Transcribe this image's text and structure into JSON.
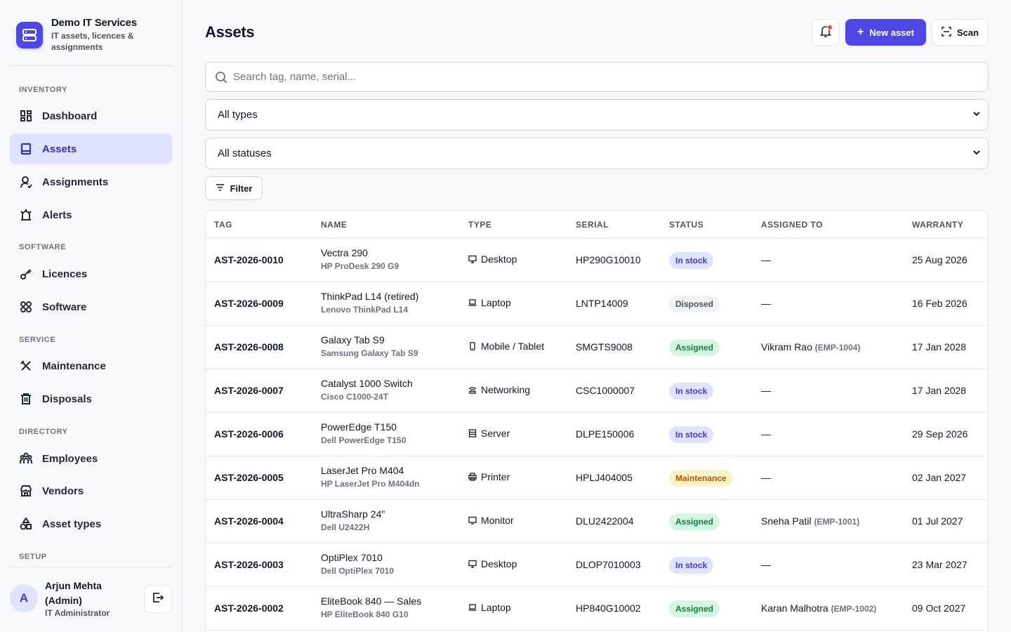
{
  "brand": {
    "title": "Demo IT Services",
    "subtitle": "IT assets, licences & assignments",
    "accent": "#4f46e5"
  },
  "nav": {
    "sections": [
      {
        "label": "INVENTORY"
      },
      {
        "label": "SOFTWARE"
      },
      {
        "label": "SERVICE"
      },
      {
        "label": "DIRECTORY"
      },
      {
        "label": "SETUP"
      }
    ],
    "items": [
      {
        "label": "Dashboard",
        "icon": "dashboard-icon"
      },
      {
        "label": "Assets",
        "icon": "assets-icon",
        "active": true
      },
      {
        "label": "Assignments",
        "icon": "assignments-icon"
      },
      {
        "label": "Alerts",
        "icon": "alerts-icon"
      },
      {
        "label": "Licences",
        "icon": "key-icon"
      },
      {
        "label": "Software",
        "icon": "software-icon"
      },
      {
        "label": "Maintenance",
        "icon": "tools-icon"
      },
      {
        "label": "Disposals",
        "icon": "trash-icon"
      },
      {
        "label": "Employees",
        "icon": "employees-icon"
      },
      {
        "label": "Vendors",
        "icon": "store-icon"
      },
      {
        "label": "Asset types",
        "icon": "shapes-icon"
      }
    ]
  },
  "user": {
    "initial": "A",
    "name": "Arjun Mehta (Admin)",
    "role": "IT Administrator"
  },
  "header": {
    "title": "Assets",
    "new_label": "New asset",
    "scan_label": "Scan"
  },
  "filters": {
    "search_placeholder": "Search tag, name, serial...",
    "type_value": "All types",
    "status_value": "All statuses",
    "filter_label": "Filter"
  },
  "table": {
    "columns": [
      "TAG",
      "NAME",
      "TYPE",
      "SERIAL",
      "STATUS",
      "ASSIGNED TO",
      "WARRANTY"
    ],
    "rows": [
      {
        "tag": "AST-2026-0010",
        "name": "Vectra 290",
        "model": "HP ProDesk 290 G9",
        "type": "Desktop",
        "type_icon": "desktop-icon",
        "serial": "HP290G10010",
        "status": "In stock",
        "status_kind": "stock",
        "assignee": "—",
        "emp": "",
        "warranty": "25 Aug 2026"
      },
      {
        "tag": "AST-2026-0009",
        "name": "ThinkPad L14 (retired)",
        "model": "Lenovo ThinkPad L14",
        "type": "Laptop",
        "type_icon": "laptop-icon",
        "serial": "LNTP14009",
        "status": "Disposed",
        "status_kind": "disp",
        "assignee": "—",
        "emp": "",
        "warranty": "16 Feb 2026"
      },
      {
        "tag": "AST-2026-0008",
        "name": "Galaxy Tab S9",
        "model": "Samsung Galaxy Tab S9",
        "type": "Mobile / Tablet",
        "type_icon": "mobile-icon",
        "serial": "SMGTS9008",
        "status": "Assigned",
        "status_kind": "asg",
        "assignee": "Vikram Rao",
        "emp": "(EMP-1004)",
        "warranty": "17 Jan 2028"
      },
      {
        "tag": "AST-2026-0007",
        "name": "Catalyst 1000 Switch",
        "model": "Cisco C1000-24T",
        "type": "Networking",
        "type_icon": "wifi-icon",
        "serial": "CSC1000007",
        "status": "In stock",
        "status_kind": "stock",
        "assignee": "—",
        "emp": "",
        "warranty": "17 Jan 2028"
      },
      {
        "tag": "AST-2026-0006",
        "name": "PowerEdge T150",
        "model": "Dell PowerEdge T150",
        "type": "Server",
        "type_icon": "server-icon",
        "serial": "DLPE150006",
        "status": "In stock",
        "status_kind": "stock",
        "assignee": "—",
        "emp": "",
        "warranty": "29 Sep 2026"
      },
      {
        "tag": "AST-2026-0005",
        "name": "LaserJet Pro M404",
        "model": "HP LaserJet Pro M404dn",
        "type": "Printer",
        "type_icon": "printer-icon",
        "serial": "HPLJ404005",
        "status": "Maintenance",
        "status_kind": "maint",
        "assignee": "—",
        "emp": "",
        "warranty": "02 Jan 2027"
      },
      {
        "tag": "AST-2026-0004",
        "name": "UltraSharp 24\"",
        "model": "Dell U2422H",
        "type": "Monitor",
        "type_icon": "monitor-icon",
        "serial": "DLU2422004",
        "status": "Assigned",
        "status_kind": "asg",
        "assignee": "Sneha Patil",
        "emp": "(EMP-1001)",
        "warranty": "01 Jul 2027"
      },
      {
        "tag": "AST-2026-0003",
        "name": "OptiPlex 7010",
        "model": "Dell OptiPlex 7010",
        "type": "Desktop",
        "type_icon": "desktop-icon",
        "serial": "DLOP7010003",
        "status": "In stock",
        "status_kind": "stock",
        "assignee": "—",
        "emp": "",
        "warranty": "23 Mar 2027"
      },
      {
        "tag": "AST-2026-0002",
        "name": "EliteBook 840 — Sales",
        "model": "HP EliteBook 840 G10",
        "type": "Laptop",
        "type_icon": "laptop-icon",
        "serial": "HP840G10002",
        "status": "Assigned",
        "status_kind": "asg",
        "assignee": "Karan Malhotra",
        "emp": "(EMP-1002)",
        "warranty": "09 Oct 2027"
      }
    ]
  }
}
